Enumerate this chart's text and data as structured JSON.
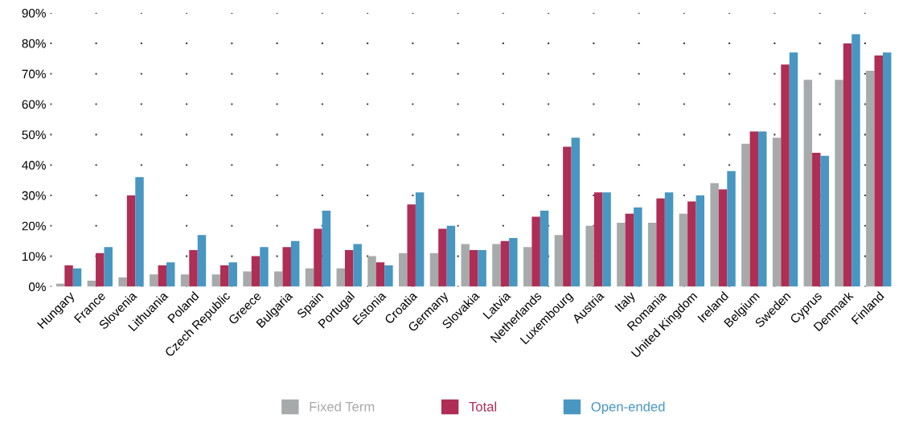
{
  "chart_data": {
    "type": "bar",
    "categories": [
      "Hungary",
      "France",
      "Slovenia",
      "Lithuania",
      "Poland",
      "Czech Republic",
      "Greece",
      "Bulgaria",
      "Spain",
      "Portugal",
      "Estonia",
      "Croatia",
      "Germany",
      "Slovakia",
      "Latvia",
      "Netherlands",
      "Luxembourg",
      "Austria",
      "Italy",
      "Romania",
      "United Kingdom",
      "Ireland",
      "Belgium",
      "Sweden",
      "Cyprus",
      "Denmark",
      "Finland"
    ],
    "series": [
      {
        "name": "Fixed Term",
        "color": "#a7aaab",
        "values": [
          1,
          2,
          3,
          4,
          4,
          4,
          5,
          5,
          6,
          6,
          10,
          11,
          11,
          14,
          14,
          13,
          17,
          20,
          21,
          21,
          24,
          34,
          47,
          49,
          68,
          68,
          71
        ]
      },
      {
        "name": "Total",
        "color": "#ae2e55",
        "values": [
          7,
          11,
          30,
          7,
          12,
          7,
          10,
          13,
          19,
          12,
          8,
          27,
          19,
          12,
          15,
          23,
          46,
          31,
          24,
          29,
          28,
          32,
          51,
          73,
          44,
          80,
          76
        ]
      },
      {
        "name": "Open-ended",
        "color": "#4896c2",
        "values": [
          6,
          13,
          36,
          8,
          17,
          8,
          13,
          15,
          25,
          14,
          7,
          31,
          20,
          12,
          16,
          25,
          49,
          31,
          26,
          31,
          30,
          38,
          51,
          77,
          43,
          83,
          77
        ]
      }
    ],
    "ylim": [
      0,
      90
    ],
    "yticks": [
      {
        "value": 0,
        "label": "0%"
      },
      {
        "value": 10,
        "label": "10%"
      },
      {
        "value": 20,
        "label": "20%"
      },
      {
        "value": 30,
        "label": "30%"
      },
      {
        "value": 40,
        "label": "40%"
      },
      {
        "value": 50,
        "label": "50%"
      },
      {
        "value": 60,
        "label": "60%"
      },
      {
        "value": 70,
        "label": "70%"
      },
      {
        "value": 80,
        "label": "80%"
      },
      {
        "value": 90,
        "label": "90%"
      }
    ],
    "grid": "y",
    "legend": "bottom"
  }
}
